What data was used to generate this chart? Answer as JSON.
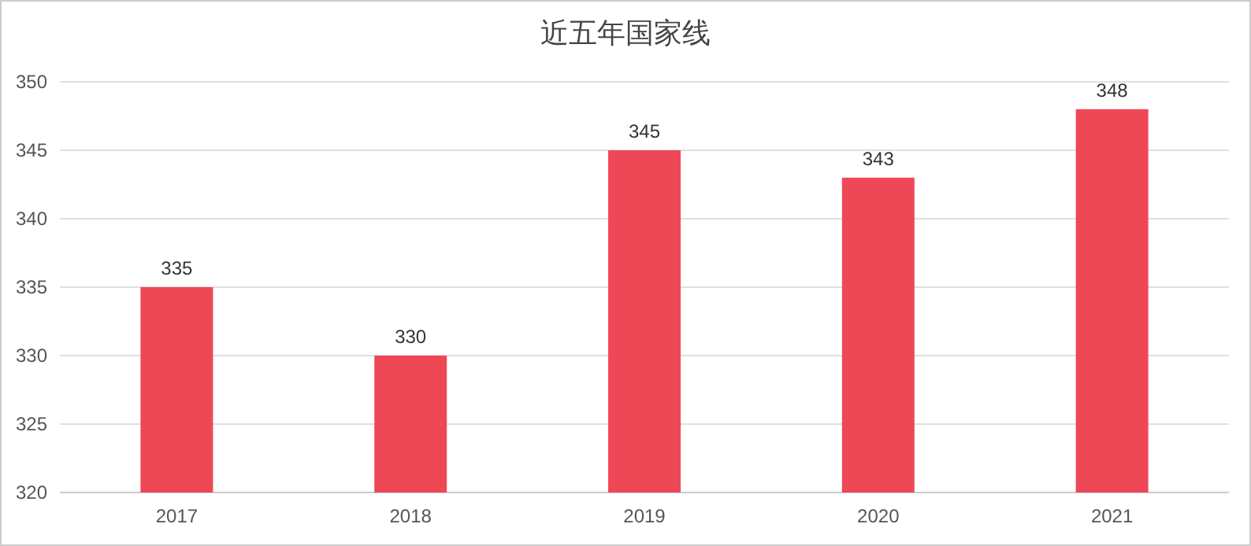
{
  "chart_data": {
    "type": "bar",
    "title": "近五年国家线",
    "categories": [
      "2017",
      "2018",
      "2019",
      "2020",
      "2021"
    ],
    "values": [
      335,
      330,
      345,
      343,
      348
    ],
    "color": "#ee4857",
    "ylim": [
      320,
      350
    ],
    "yticks": [
      320,
      325,
      330,
      335,
      340,
      345,
      350
    ],
    "grid": "y",
    "data_labels": true
  }
}
